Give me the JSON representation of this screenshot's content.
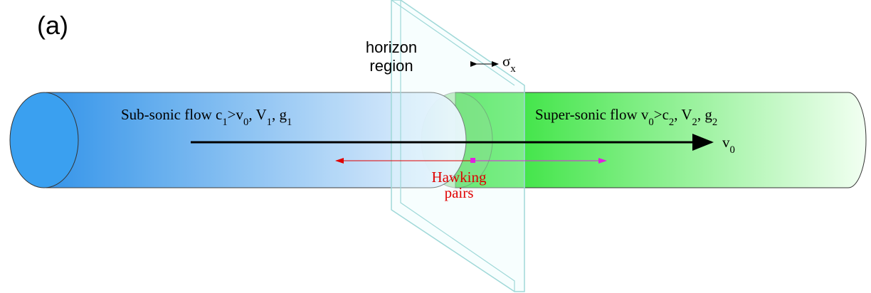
{
  "panel_label": "(a)",
  "horizon_label": [
    "horizon",
    "region"
  ],
  "width_label": [
    {
      "text": "σ",
      "sub": "x"
    }
  ],
  "subsonic_label": [
    {
      "text": "Sub-sonic flow c",
      "sub": "1"
    },
    {
      "text": ">v",
      "sub": "0"
    },
    {
      "text": ",  V",
      "sub": "1"
    },
    {
      "text": ",  g",
      "sub": "1"
    }
  ],
  "supersonic_label": [
    {
      "text": "Super-sonic flow v",
      "sub": "0"
    },
    {
      "text": ">c",
      "sub": "2"
    },
    {
      "text": ",  V",
      "sub": "2"
    },
    {
      "text": ", g",
      "sub": "2"
    }
  ],
  "velocity_label": [
    {
      "text": "v",
      "sub": "0"
    }
  ],
  "hawking_label": [
    "Hawking",
    "pairs"
  ]
}
